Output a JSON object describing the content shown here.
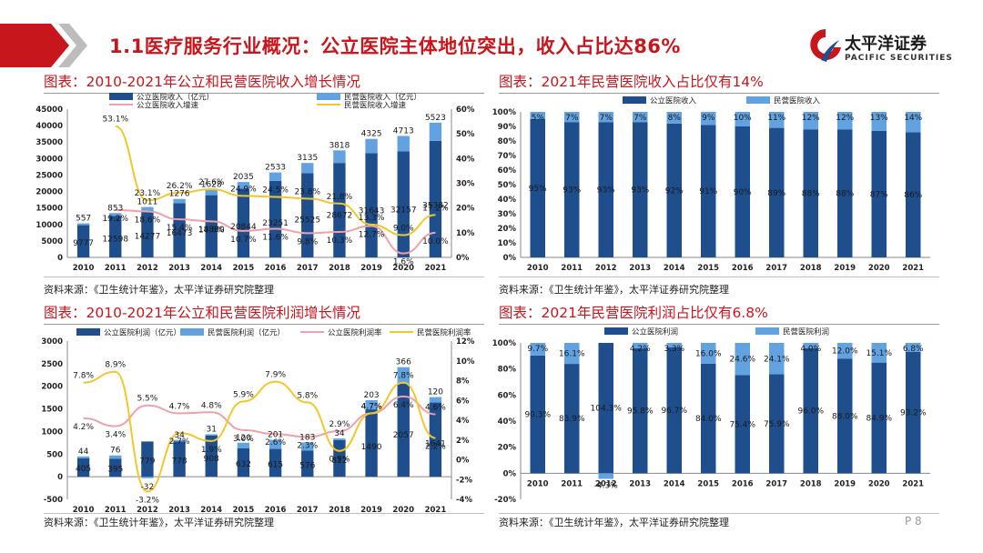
{
  "header": {
    "title": "1.1医疗服务行业概况：公立医院主体地位突出，收入占比达86%",
    "logo_name": "太平洋证券",
    "logo_sub": "PACIFIC SECURITIES"
  },
  "page_number": "P 8",
  "colors": {
    "public": "#1f4e8c",
    "private": "#62a2e0",
    "public_line": "#f0a0a8",
    "private_line": "#f2c72b",
    "title_red": "#c8161d"
  },
  "panels": {
    "p1": {
      "title": "图表：2010-2021年公立和民营医院收入增长情况",
      "source": "资料来源：《卫生统计年鉴》，太平洋证券研究院整理"
    },
    "p2": {
      "title": "图表：2021年民营医院收入占比仅有14%",
      "source": "资料来源：《卫生统计年鉴》，太平洋证券研究院整理"
    },
    "p3": {
      "title": "图表：2010-2021年公立和民营医院利润增长情况",
      "source": "资料来源：《卫生统计年鉴》，太平洋证券研究院整理"
    },
    "p4": {
      "title": "图表：2021年民营医院利润占比仅有6.8%",
      "source": "资料来源：《卫生统计年鉴》，太平洋证券研究院整理"
    }
  },
  "chart_data": [
    {
      "id": "p1",
      "type": "bar",
      "categories": [
        "2010",
        "2011",
        "2012",
        "2013",
        "2014",
        "2015",
        "2016",
        "2017",
        "2018",
        "2019",
        "2020",
        "2021"
      ],
      "series": [
        {
          "name": "公立医院收入（亿元）",
          "kind": "bar",
          "axis": "left",
          "stack": "s",
          "values": [
            9777,
            12598,
            14277,
            16473,
            18880,
            20844,
            23251,
            25525,
            28672,
            31643,
            32157,
            35382
          ]
        },
        {
          "name": "民营医院收入（亿元）",
          "kind": "bar",
          "axis": "left",
          "stack": "s",
          "values": [
            557,
            853,
            1011,
            1276,
            1628,
            2035,
            2533,
            3135,
            3818,
            4325,
            4713,
            5523
          ]
        },
        {
          "name": "公立医院收入增速",
          "kind": "line",
          "axis": "right",
          "values": [
            null,
            19.2,
            18.6,
            15.4,
            14.6,
            10.7,
            11.6,
            9.8,
            10.3,
            12.7,
            1.6,
            10.0
          ],
          "labels": [
            "",
            "19.2%",
            "18.6%",
            "15.4%",
            "14.6%",
            "10.7%",
            "11.6%",
            "9.8%",
            "10.3%",
            "12.7%",
            "1.6%",
            "10.0%"
          ]
        },
        {
          "name": "民营医院收入增速",
          "kind": "line",
          "axis": "right",
          "values": [
            null,
            53.1,
            23.1,
            26.2,
            27.6,
            24.9,
            24.5,
            23.8,
            21.8,
            13.3,
            9.0,
            17.2
          ],
          "labels": [
            "",
            "53.1%",
            "23.1%",
            "26.2%",
            "27.6%",
            "24.9%",
            "24.5%",
            "23.8%",
            "21.8%",
            "13.3%",
            "9.0%",
            "17.2%"
          ]
        }
      ],
      "y_left": {
        "min": 0,
        "max": 45000,
        "ticks": [
          "0",
          "5000",
          "10000",
          "15000",
          "20000",
          "25000",
          "30000",
          "35000",
          "40000",
          "45000"
        ]
      },
      "y_right": {
        "min": 0,
        "max": 60,
        "ticks": [
          "0%",
          "10%",
          "20%",
          "30%",
          "40%",
          "50%",
          "60%"
        ]
      },
      "legend": "top"
    },
    {
      "id": "p2",
      "type": "bar",
      "categories": [
        "2010",
        "2011",
        "2012",
        "2013",
        "2014",
        "2015",
        "2016",
        "2017",
        "2018",
        "2019",
        "2020",
        "2021"
      ],
      "series": [
        {
          "name": "公立医院收入",
          "values": [
            95,
            93,
            93,
            93,
            92,
            91,
            90,
            89,
            88,
            88,
            87,
            86
          ],
          "labels": [
            "95%",
            "93%",
            "93%",
            "93%",
            "92%",
            "91%",
            "90%",
            "89%",
            "88%",
            "88%",
            "87%",
            "86%"
          ]
        },
        {
          "name": "民营医院收入",
          "values": [
            5,
            7,
            7,
            7,
            8,
            9,
            10,
            11,
            12,
            12,
            13,
            14
          ],
          "labels": [
            "5%",
            "7%",
            "7%",
            "7%",
            "8%",
            "9%",
            "10%",
            "11%",
            "12%",
            "12%",
            "13%",
            "14%"
          ]
        }
      ],
      "y": {
        "min": 0,
        "max": 100,
        "ticks": [
          "0%",
          "10%",
          "20%",
          "30%",
          "40%",
          "50%",
          "60%",
          "70%",
          "80%",
          "90%",
          "100%"
        ]
      },
      "legend": "top"
    },
    {
      "id": "p3",
      "type": "bar",
      "categories": [
        "2010",
        "2011",
        "2012",
        "2013",
        "2014",
        "2015",
        "2016",
        "2017",
        "2018",
        "2019",
        "2020",
        "2021"
      ],
      "series": [
        {
          "name": "公立医院利润（亿元）",
          "kind": "bar",
          "axis": "left",
          "stack": "s",
          "values": [
            405,
            395,
            779,
            778,
            908,
            632,
            615,
            576,
            812,
            1490,
            2057,
            1641
          ],
          "labels": [
            "405",
            "395",
            "779",
            "778",
            "908",
            "632",
            "615",
            "576",
            "812",
            "1490",
            "2057",
            "1641"
          ]
        },
        {
          "name": "民营医院利润（亿元）",
          "kind": "bar",
          "axis": "left",
          "stack": "s",
          "values": [
            44,
            76,
            -32,
            34,
            31,
            120,
            201,
            183,
            34,
            203,
            366,
            120
          ],
          "labels": [
            "44",
            "76",
            "-32",
            "34",
            "31",
            "120",
            "201",
            "183",
            "34",
            "203",
            "366",
            "120"
          ]
        },
        {
          "name": "公立医院利润率",
          "kind": "line",
          "axis": "right",
          "values": [
            4.2,
            3.4,
            5.5,
            4.7,
            4.8,
            3.0,
            2.6,
            2.3,
            2.9,
            4.7,
            6.4,
            4.6
          ],
          "labels": [
            "4.2%",
            "3.4%",
            "5.5%",
            "4.7%",
            "4.8%",
            "3.0%",
            "2.6%",
            "2.3%",
            "2.9%",
            "4.7%",
            "6.4%",
            "4.6%"
          ]
        },
        {
          "name": "民营医院利润率",
          "kind": "line",
          "axis": "right",
          "values": [
            7.8,
            8.9,
            -3.2,
            2.7,
            1.9,
            5.9,
            7.9,
            5.8,
            0.9,
            4.7,
            7.8,
            2.2
          ],
          "labels": [
            "7.8%",
            "8.9%",
            "-3.2%",
            "2.7%",
            "1.9%",
            "5.9%",
            "7.9%",
            "5.8%",
            "0.9%",
            "4.7%",
            "7.8%",
            "2.2%"
          ]
        }
      ],
      "y_left": {
        "min": -500,
        "max": 3000,
        "ticks": [
          "-500",
          "0",
          "500",
          "1000",
          "1500",
          "2000",
          "2500",
          "3000"
        ]
      },
      "y_right": {
        "min": -4,
        "max": 12,
        "ticks": [
          "-4%",
          "-2%",
          "0%",
          "2%",
          "4%",
          "6%",
          "8%",
          "10%",
          "12%"
        ]
      },
      "legend": "top"
    },
    {
      "id": "p4",
      "type": "bar",
      "categories": [
        "2010",
        "2011",
        "2012",
        "2013",
        "2014",
        "2015",
        "2016",
        "2017",
        "2018",
        "2019",
        "2020",
        "2021"
      ],
      "series": [
        {
          "name": "公立医院利润",
          "values": [
            90.3,
            83.9,
            104.3,
            95.8,
            96.7,
            84.0,
            75.4,
            75.9,
            96.0,
            88.0,
            84.9,
            93.2
          ],
          "labels": [
            "90.3%",
            "83.9%",
            "104.3%",
            "95.8%",
            "96.7%",
            "84.0%",
            "75.4%",
            "75.9%",
            "96.0%",
            "88.0%",
            "84.9%",
            "93.2%"
          ]
        },
        {
          "name": "民营医院利润",
          "values": [
            9.7,
            16.1,
            -4.3,
            4.2,
            3.3,
            16.0,
            24.6,
            24.1,
            4.0,
            12.0,
            15.1,
            6.8
          ],
          "labels": [
            "9.7%",
            "16.1%",
            "-4.3%",
            "4.2%",
            "3.3%",
            "16.0%",
            "24.6%",
            "24.1%",
            "4.0%",
            "12.0%",
            "15.1%",
            "6.8%"
          ]
        }
      ],
      "y": {
        "min": -20,
        "max": 100,
        "ticks": [
          "-20%",
          "0%",
          "20%",
          "40%",
          "60%",
          "80%",
          "100%"
        ]
      },
      "legend": "top"
    }
  ]
}
